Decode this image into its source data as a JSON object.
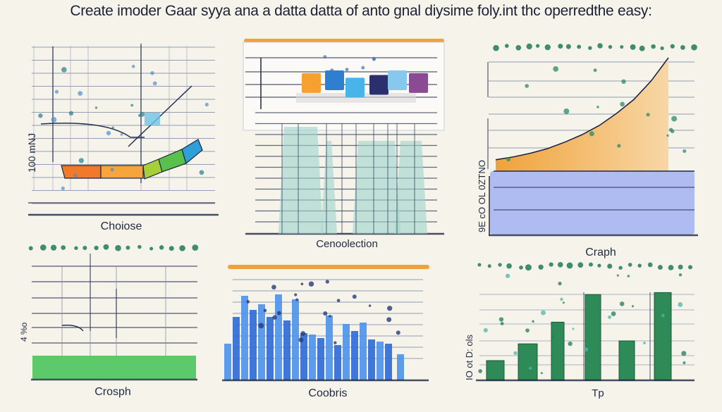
{
  "header": {
    "title": "Create imoder Gaar syya ana a datta datta of anto gnal diysime foly.int thc operredthe easy:"
  },
  "colors": {
    "background": "#f5f3ea",
    "ink": "#1f2a44",
    "orange": "#f0a23a",
    "teal": "#9fd3cc",
    "blue": "#3f86e0",
    "green": "#2e8b57",
    "lavender": "#aebcf2",
    "bright_green": "#5cc96a"
  },
  "chart_data": [
    {
      "type": "line",
      "panel": "top-left",
      "xlabel": "Choiose",
      "ylabel": "100 mNJ",
      "legend_swatches": [
        "#f07a2a",
        "#f5a53b",
        "#a6cf3a",
        "#59c04c",
        "#2f9fd8"
      ],
      "grid": true
    },
    {
      "type": "bar",
      "panel": "top-center",
      "xlabel": "Cenoolection",
      "legend_swatches": [
        "#f5a030",
        "#2f7fd0",
        "#49b4ea",
        "#2b2f6e",
        "#86c8ee",
        "#8a4a94"
      ],
      "values": [
        70,
        85,
        45,
        60,
        85,
        70
      ],
      "grid": true
    },
    {
      "type": "area",
      "panel": "top-right",
      "xlabel": "Craph",
      "ylabel": "9E cO OL 0ZTNO",
      "x": [
        0,
        1,
        2,
        3,
        4,
        5,
        6,
        7,
        8,
        9,
        10
      ],
      "values": [
        1,
        1.3,
        1.7,
        2.2,
        2.9,
        3.7,
        4.7,
        6.0,
        7.5,
        9.5,
        12
      ],
      "grid": true
    },
    {
      "type": "bar",
      "panel": "bottom-left",
      "xlabel": "Crosph",
      "ylabel": "4 %o",
      "grid": true
    },
    {
      "type": "bar",
      "panel": "bottom-center",
      "xlabel": "Coobris",
      "values": [
        52,
        90,
        120,
        100,
        108,
        90,
        122,
        85,
        115,
        67,
        65,
        60,
        92,
        50,
        80,
        70,
        82,
        58,
        55,
        52,
        37
      ],
      "grid": true
    },
    {
      "type": "bar",
      "panel": "bottom-right",
      "xlabel": "Tp",
      "ylabel": "IO ot D: ols",
      "values": [
        2,
        3.7,
        5.9,
        8.7,
        4,
        8.9
      ],
      "grid": true
    }
  ]
}
